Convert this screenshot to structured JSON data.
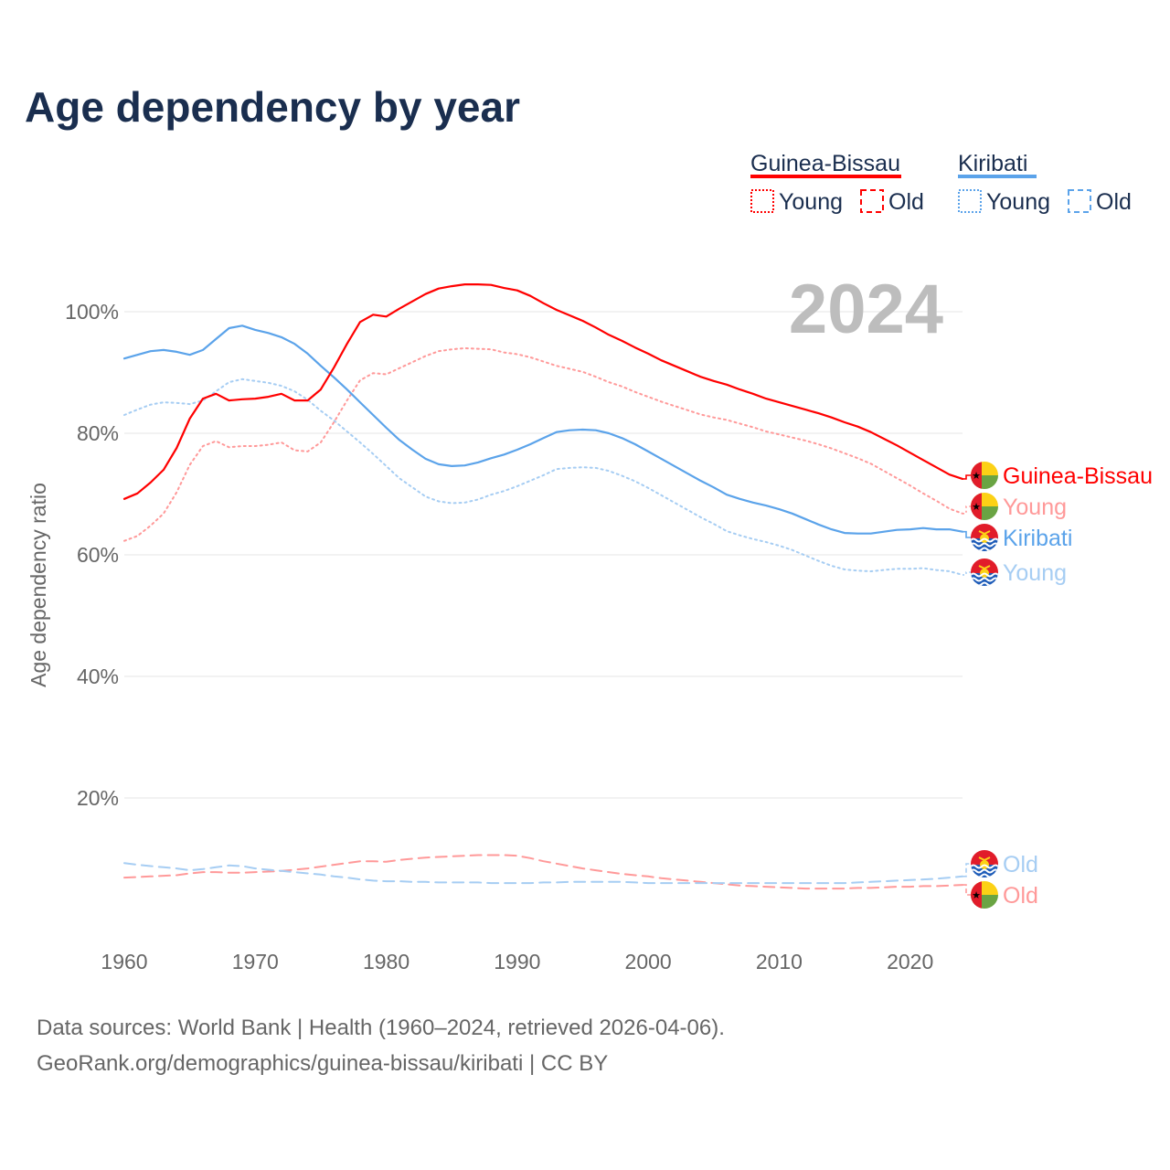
{
  "title": "Age dependency by year",
  "year_overlay": "2024",
  "legend": {
    "groups": [
      {
        "country": "Guinea-Bissau",
        "color": "#ff0000",
        "young_label": "Young",
        "old_label": "Old"
      },
      {
        "country": "Kiribati",
        "color": "#5ba3ea",
        "young_label": "Young",
        "old_label": "Old"
      }
    ]
  },
  "footer": {
    "line1": "Data sources: World Bank | Health (1960–2024, retrieved 2026-04-06).",
    "line2": "GeoRank.org/demographics/guinea-bissau/kiribati | CC BY"
  },
  "chart_data": {
    "type": "line",
    "title": "Age dependency by year",
    "xlabel": "",
    "ylabel": "Age dependency ratio",
    "xlim": [
      1960,
      2024
    ],
    "ylim": [
      0,
      110
    ],
    "x_ticks": [
      "1960",
      "1970",
      "1980",
      "1990",
      "2000",
      "2010",
      "2020"
    ],
    "y_ticks": [
      "20%",
      "40%",
      "60%",
      "80%",
      "100%"
    ],
    "y_tick_values": [
      20,
      40,
      60,
      80,
      100
    ],
    "grid": true,
    "legend_position": "top-right",
    "x_start": 1960,
    "series": [
      {
        "name": "Guinea-Bissau",
        "end_label": "Guinea-Bissau",
        "country": "gb",
        "color": "#ff0000",
        "style": "solid",
        "values": [
          69.2,
          70.1,
          71.9,
          74.0,
          77.6,
          82.4,
          85.7,
          86.5,
          85.4,
          85.6,
          85.7,
          86.0,
          86.5,
          85.4,
          85.4,
          87.2,
          90.8,
          94.7,
          98.3,
          99.5,
          99.2,
          100.5,
          101.7,
          102.9,
          103.8,
          104.2,
          104.5,
          104.5,
          104.4,
          103.9,
          103.5,
          102.6,
          101.4,
          100.3,
          99.4,
          98.5,
          97.4,
          96.2,
          95.2,
          94.1,
          93.1,
          92.0,
          91.1,
          90.2,
          89.3,
          88.6,
          88.0,
          87.2,
          86.5,
          85.7,
          85.1,
          84.5,
          83.9,
          83.3,
          82.6,
          81.8,
          81.1,
          80.2,
          79.1,
          78.0,
          76.8,
          75.6,
          74.4,
          73.2,
          72.5
        ]
      },
      {
        "name": "Guinea-Bissau Young",
        "end_label": "Young",
        "country": "gb",
        "color": "#ff9999",
        "style": "dotted",
        "values": [
          62.3,
          63.1,
          64.8,
          66.8,
          70.3,
          74.8,
          77.9,
          78.7,
          77.7,
          77.9,
          77.9,
          78.1,
          78.5,
          77.2,
          77.0,
          78.5,
          81.8,
          85.4,
          88.7,
          89.9,
          89.7,
          90.7,
          91.7,
          92.7,
          93.5,
          93.8,
          94.0,
          93.9,
          93.8,
          93.3,
          93.0,
          92.5,
          91.8,
          91.1,
          90.6,
          90.1,
          89.3,
          88.4,
          87.7,
          86.8,
          86.0,
          85.2,
          84.5,
          83.8,
          83.1,
          82.6,
          82.2,
          81.6,
          81.0,
          80.3,
          79.8,
          79.3,
          78.8,
          78.2,
          77.5,
          76.7,
          75.9,
          75.0,
          73.8,
          72.6,
          71.4,
          70.1,
          68.9,
          67.6,
          66.8
        ]
      },
      {
        "name": "Guinea-Bissau Old",
        "end_label": "Old",
        "country": "gb",
        "color": "#ff9999",
        "style": "dashed",
        "values": [
          6.9,
          7.0,
          7.1,
          7.2,
          7.3,
          7.6,
          7.8,
          7.8,
          7.7,
          7.7,
          7.8,
          7.9,
          8.0,
          8.2,
          8.4,
          8.7,
          9.0,
          9.3,
          9.6,
          9.6,
          9.5,
          9.8,
          10.0,
          10.2,
          10.3,
          10.4,
          10.5,
          10.6,
          10.6,
          10.6,
          10.5,
          10.1,
          9.6,
          9.2,
          8.8,
          8.4,
          8.1,
          7.8,
          7.5,
          7.3,
          7.1,
          6.8,
          6.6,
          6.4,
          6.2,
          6.0,
          5.8,
          5.6,
          5.5,
          5.4,
          5.3,
          5.2,
          5.1,
          5.1,
          5.1,
          5.1,
          5.2,
          5.2,
          5.3,
          5.4,
          5.4,
          5.5,
          5.5,
          5.6,
          5.7
        ]
      },
      {
        "name": "Kiribati",
        "end_label": "Kiribati",
        "country": "ki",
        "color": "#5ba3ea",
        "style": "solid",
        "values": [
          92.3,
          92.9,
          93.5,
          93.7,
          93.4,
          92.9,
          93.7,
          95.5,
          97.3,
          97.7,
          97.0,
          96.5,
          95.8,
          94.7,
          93.1,
          91.1,
          89.2,
          87.2,
          85.1,
          83.0,
          80.9,
          78.9,
          77.3,
          75.8,
          74.9,
          74.6,
          74.7,
          75.2,
          75.9,
          76.5,
          77.3,
          78.2,
          79.2,
          80.2,
          80.5,
          80.6,
          80.5,
          80.0,
          79.2,
          78.2,
          77.0,
          75.8,
          74.6,
          73.4,
          72.2,
          71.1,
          69.9,
          69.2,
          68.6,
          68.1,
          67.5,
          66.8,
          65.9,
          65.0,
          64.2,
          63.6,
          63.5,
          63.5,
          63.8,
          64.1,
          64.2,
          64.4,
          64.2,
          64.2,
          63.8
        ]
      },
      {
        "name": "Kiribati Young",
        "end_label": "Young",
        "country": "ki",
        "color": "#a6cdf3",
        "style": "dotted",
        "values": [
          83.0,
          83.9,
          84.7,
          85.1,
          85.0,
          84.8,
          85.4,
          86.9,
          88.4,
          88.9,
          88.6,
          88.3,
          87.8,
          86.9,
          85.5,
          83.7,
          82.1,
          80.3,
          78.5,
          76.6,
          74.6,
          72.6,
          71.1,
          69.6,
          68.8,
          68.5,
          68.6,
          69.1,
          69.9,
          70.5,
          71.3,
          72.2,
          73.1,
          74.1,
          74.3,
          74.4,
          74.3,
          73.8,
          73.0,
          72.1,
          71.0,
          69.8,
          68.6,
          67.4,
          66.2,
          65.1,
          63.9,
          63.2,
          62.6,
          62.1,
          61.5,
          60.8,
          59.9,
          59.0,
          58.2,
          57.6,
          57.4,
          57.3,
          57.5,
          57.7,
          57.7,
          57.8,
          57.5,
          57.3,
          56.7
        ]
      },
      {
        "name": "Kiribati Old",
        "end_label": "Old",
        "country": "ki",
        "color": "#a6cdf3",
        "style": "dashed",
        "values": [
          9.3,
          9.0,
          8.8,
          8.6,
          8.4,
          8.1,
          8.3,
          8.6,
          8.9,
          8.8,
          8.4,
          8.2,
          8.0,
          7.8,
          7.6,
          7.4,
          7.1,
          6.9,
          6.6,
          6.4,
          6.3,
          6.3,
          6.2,
          6.2,
          6.1,
          6.1,
          6.1,
          6.1,
          6.0,
          6.0,
          6.0,
          6.0,
          6.1,
          6.1,
          6.2,
          6.2,
          6.2,
          6.2,
          6.2,
          6.1,
          6.0,
          6.0,
          6.0,
          6.0,
          6.0,
          6.0,
          6.0,
          6.0,
          6.0,
          6.0,
          6.0,
          6.0,
          6.0,
          6.0,
          6.0,
          6.0,
          6.1,
          6.2,
          6.3,
          6.4,
          6.5,
          6.6,
          6.7,
          6.9,
          7.1
        ]
      }
    ]
  }
}
